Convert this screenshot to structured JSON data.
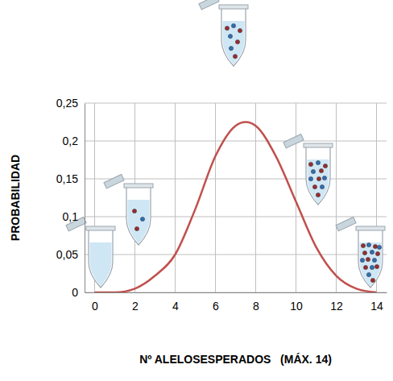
{
  "chart_data": {
    "type": "line",
    "x_label": "Nº ALELOSESPERADOS   (MÁX. 14)",
    "y_label": "PROBABILIDAD",
    "x": [
      0,
      1,
      2,
      3,
      4,
      5,
      6,
      7,
      7.5,
      8,
      9,
      10,
      11,
      12,
      13,
      14
    ],
    "values": [
      0,
      0,
      0.005,
      0.022,
      0.05,
      0.11,
      0.18,
      0.22,
      0.225,
      0.22,
      0.18,
      0.12,
      0.06,
      0.022,
      0.005,
      0
    ],
    "color": "#c0504d",
    "xlim": [
      -0.5,
      14.5
    ],
    "xticks": [
      0,
      2,
      4,
      6,
      8,
      10,
      12,
      14
    ],
    "ylim": [
      0,
      0.25
    ],
    "yticks": [
      0,
      {
        "value": 0.05,
        "label": "0,05"
      },
      {
        "value": 0.1,
        "label": "0,1"
      },
      {
        "value": 0.15,
        "label": "0,15"
      },
      {
        "value": 0.2,
        "label": "0,2"
      },
      {
        "value": 0.25,
        "label": "0,25"
      }
    ],
    "grid": true
  }
}
